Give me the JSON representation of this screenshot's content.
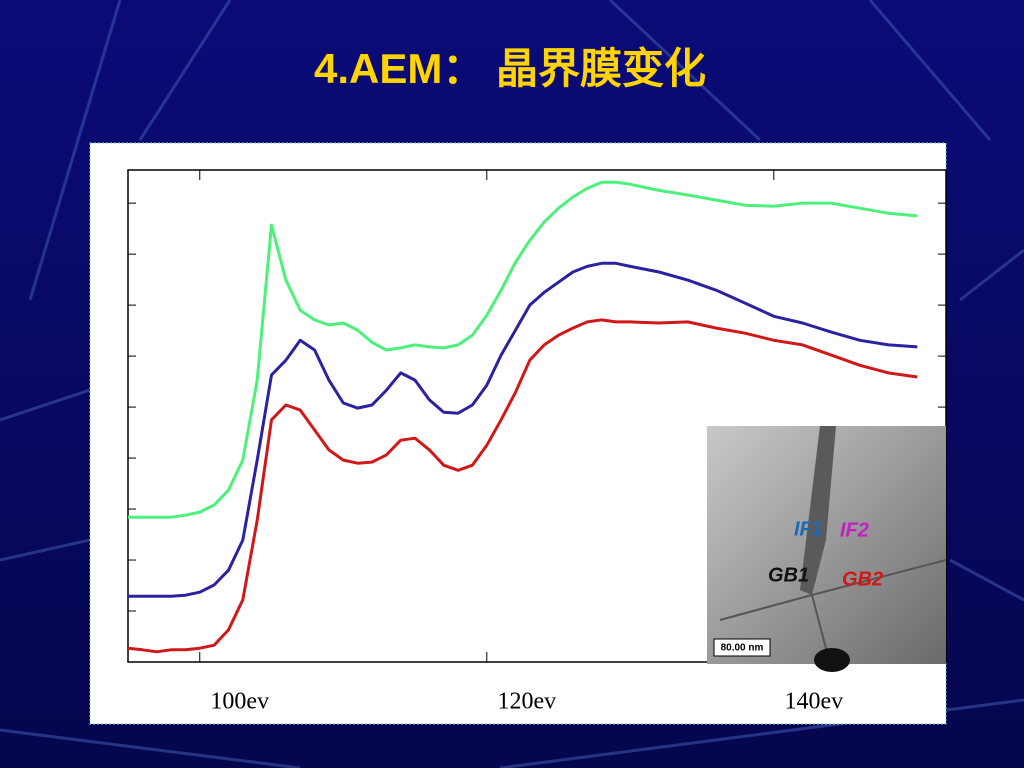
{
  "chart_data": {
    "type": "line",
    "title": "4.AEM：  晶界膜变化",
    "x": [
      95,
      96,
      97,
      98,
      99,
      100,
      101,
      102,
      103,
      104,
      105,
      106,
      107,
      108,
      109,
      110,
      111,
      112,
      113,
      114,
      115,
      116,
      117,
      118,
      119,
      120,
      121,
      122,
      123,
      124,
      125,
      126,
      127,
      128,
      129,
      130,
      132,
      134,
      136,
      138,
      140,
      142,
      144,
      146,
      148,
      150
    ],
    "series": [
      {
        "color": "#4cf07a",
        "values": [
          2.84,
          2.84,
          2.84,
          2.84,
          2.88,
          2.94,
          3.08,
          3.37,
          3.96,
          5.53,
          8.57,
          7.49,
          6.9,
          6.71,
          6.61,
          6.65,
          6.51,
          6.27,
          6.12,
          6.16,
          6.22,
          6.18,
          6.16,
          6.22,
          6.41,
          6.8,
          7.29,
          7.84,
          8.27,
          8.63,
          8.9,
          9.12,
          9.29,
          9.41,
          9.41,
          9.37,
          9.25,
          9.16,
          9.06,
          8.96,
          8.94,
          9.0,
          9.0,
          8.9,
          8.8,
          8.75
        ]
      },
      {
        "color": "#2a22a0",
        "values": [
          1.29,
          1.29,
          1.29,
          1.29,
          1.31,
          1.37,
          1.51,
          1.8,
          2.39,
          3.96,
          5.63,
          5.92,
          6.31,
          6.12,
          5.53,
          5.08,
          4.98,
          5.04,
          5.33,
          5.67,
          5.53,
          5.14,
          4.9,
          4.88,
          5.04,
          5.43,
          6.02,
          6.51,
          7.0,
          7.25,
          7.45,
          7.65,
          7.76,
          7.82,
          7.82,
          7.76,
          7.65,
          7.49,
          7.29,
          7.04,
          6.78,
          6.65,
          6.47,
          6.31,
          6.22,
          6.18
        ]
      },
      {
        "color": "#d01818",
        "values": [
          0.27,
          0.24,
          0.2,
          0.24,
          0.24,
          0.27,
          0.33,
          0.63,
          1.22,
          2.78,
          4.75,
          5.04,
          4.94,
          4.55,
          4.16,
          3.96,
          3.9,
          3.92,
          4.06,
          4.35,
          4.39,
          4.16,
          3.86,
          3.76,
          3.86,
          4.25,
          4.75,
          5.29,
          5.92,
          6.22,
          6.41,
          6.55,
          6.67,
          6.71,
          6.67,
          6.67,
          6.65,
          6.67,
          6.55,
          6.45,
          6.31,
          6.22,
          6.02,
          5.82,
          5.67,
          5.59
        ]
      }
    ],
    "xlim": [
      95,
      152
    ],
    "ylim": [
      0,
      9.65
    ],
    "xticks": [
      {
        "value": 100,
        "label": "100ev"
      },
      {
        "value": 120,
        "label": "120ev"
      },
      {
        "value": 140,
        "label": "140ev"
      }
    ],
    "yticks": [
      1,
      2,
      3,
      4,
      5,
      6,
      7,
      8,
      9
    ]
  },
  "inset": {
    "labels": [
      "IF1",
      "IF2",
      "GB1",
      "GB2"
    ],
    "scale_bar": "80.00 nm"
  }
}
